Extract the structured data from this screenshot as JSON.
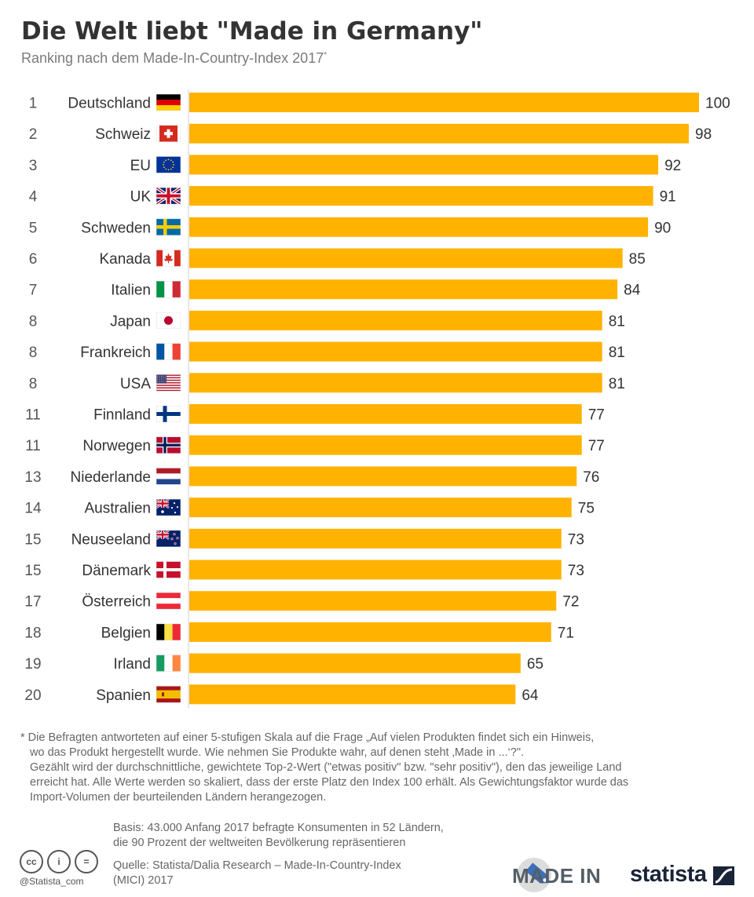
{
  "title": "Die Welt liebt \"Made in Germany\"",
  "subtitle": "Ranking nach dem Made-In-Country-Index 2017",
  "subtitle_mark": "*",
  "chart_data": {
    "type": "bar",
    "orientation": "horizontal",
    "categories": [
      "Deutschland",
      "Schweiz",
      "EU",
      "UK",
      "Schweden",
      "Kanada",
      "Italien",
      "Japan",
      "Frankreich",
      "USA",
      "Finnland",
      "Norwegen",
      "Niederlande",
      "Australien",
      "Neuseeland",
      "Dänemark",
      "Österreich",
      "Belgien",
      "Irland",
      "Spanien"
    ],
    "ranks": [
      "1",
      "2",
      "3",
      "4",
      "5",
      "6",
      "7",
      "8",
      "8",
      "8",
      "11",
      "11",
      "13",
      "14",
      "15",
      "15",
      "17",
      "18",
      "19",
      "20"
    ],
    "values": [
      100,
      98,
      92,
      91,
      90,
      85,
      84,
      81,
      81,
      81,
      77,
      77,
      76,
      75,
      73,
      73,
      72,
      71,
      65,
      64
    ],
    "flags": [
      "flag-germany",
      "flag-switzerland",
      "flag-eu",
      "flag-uk",
      "flag-sweden",
      "flag-canada",
      "flag-italy",
      "flag-japan",
      "flag-france",
      "flag-usa",
      "flag-finland",
      "flag-norway",
      "flag-netherlands",
      "flag-australia",
      "flag-new-zealand",
      "flag-denmark",
      "flag-austria",
      "flag-belgium",
      "flag-ireland",
      "flag-spain"
    ],
    "xlim": [
      0,
      100
    ],
    "bar_color": "#FFB300",
    "grid": false,
    "legend": "none",
    "xlabel": "",
    "ylabel": ""
  },
  "footnote": {
    "line1": "* Die Befragten antworteten auf einer 5-stufigen Skala auf die Frage „Auf vielen Produkten findet sich ein Hinweis,",
    "line2": "wo das Produkt hergestellt wurde. Wie nehmen Sie Produkte wahr, auf denen steht ‚Made in ...‘?\".",
    "line3": "Gezählt wird der durchschnittliche, gewichtete Top-2-Wert (\"etwas positiv\" bzw. \"sehr positiv\"), den das jeweilige Land",
    "line4": "erreicht hat. Alle Werte werden so skaliert, dass der erste Platz den Index 100 erhält. Als Gewichtungsfaktor wurde das",
    "line5": "Import-Volumen der beurteilenden Ländern herangezogen."
  },
  "basis": {
    "line1": "Basis: 43.000 Anfang 2017 befragte Konsumenten in 52 Ländern,",
    "line2": "die 90 Prozent der weltweiten Bevölkerung repräsentieren"
  },
  "source": {
    "line1": "Quelle: Statista/Dalia Research – Made-In-Country-Index",
    "line2": "(MICI) 2017"
  },
  "license_icons": [
    "cc-icon",
    "by-icon",
    "nd-icon"
  ],
  "license_glyphs": [
    "cc",
    "i",
    "="
  ],
  "handle": "@Statista_com",
  "made_in_logo": "MADE IN",
  "brand": "statista",
  "colors": {
    "bar": "#FFB300",
    "title": "#333333",
    "subtitle": "#7a7a7a",
    "brand": "#1a2438"
  }
}
